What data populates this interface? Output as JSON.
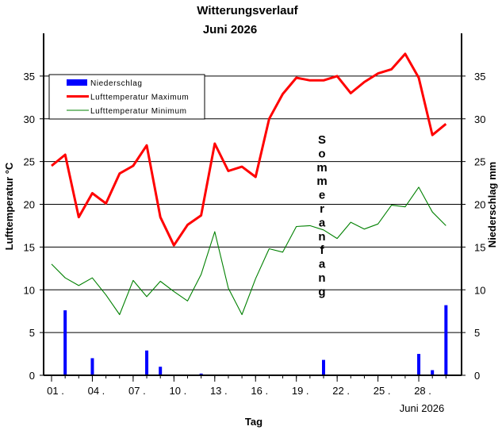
{
  "chart_data": {
    "type": "line",
    "title": "Witterungsverlauf",
    "subtitle": "Juni 2026",
    "xlabel": "Tag",
    "x_period_label": "Juni 2026",
    "ylabel_left": "Lufttemperatur °C",
    "ylabel_right": "Niederschlag  mm",
    "ylim_left": [
      0,
      40
    ],
    "ylim_right": [
      0,
      40
    ],
    "y_ticks": [
      0,
      5,
      10,
      15,
      20,
      25,
      30,
      35
    ],
    "x_days": [
      1,
      2,
      3,
      4,
      5,
      6,
      7,
      8,
      9,
      10,
      11,
      12,
      13,
      14,
      15,
      16,
      17,
      18,
      19,
      20,
      21,
      22,
      23,
      24,
      25,
      26,
      27,
      28,
      29,
      30
    ],
    "x_tick_days": [
      1,
      4,
      7,
      10,
      13,
      16,
      19,
      22,
      25,
      28
    ],
    "x_tick_labels": [
      "01 .",
      "04 .",
      "07 .",
      "10 .",
      "13 .",
      "16 .",
      "19 .",
      "22 .",
      "25 .",
      "28 ."
    ],
    "grid": "horizontal",
    "legend_position": "top-left",
    "annotation": "Sommeranfang",
    "annotation_day": 21,
    "series": [
      {
        "name": "Niederschlag",
        "kind": "bar",
        "axis": "right",
        "color": "#0000ff",
        "values": [
          0,
          7.6,
          0,
          2.0,
          0,
          0,
          0,
          2.9,
          1.0,
          0,
          0,
          0.2,
          0,
          0,
          0,
          0,
          0,
          0,
          0,
          0,
          1.8,
          0,
          0,
          0,
          0,
          0,
          0,
          2.5,
          0.6,
          8.2
        ]
      },
      {
        "name": "Lufttemperatur Maximum",
        "kind": "line",
        "axis": "left",
        "color": "#ff0000",
        "values": [
          24.5,
          25.8,
          18.5,
          21.3,
          20.1,
          23.6,
          24.5,
          26.9,
          18.5,
          15.2,
          17.6,
          18.7,
          27.1,
          23.9,
          24.4,
          23.2,
          30.0,
          32.9,
          34.8,
          34.5,
          34.5,
          35.0,
          33.0,
          34.3,
          35.3,
          35.8,
          37.6,
          34.8,
          28.1,
          29.4
        ]
      },
      {
        "name": "Lufttemperatur Minimum",
        "kind": "line",
        "axis": "left",
        "color": "#008000",
        "values": [
          13.0,
          11.4,
          10.5,
          11.4,
          9.4,
          7.1,
          11.1,
          9.2,
          11.0,
          9.8,
          8.7,
          11.8,
          16.8,
          10.2,
          7.1,
          11.3,
          14.8,
          14.4,
          17.4,
          17.5,
          17.0,
          16.0,
          17.9,
          17.1,
          17.7,
          19.9,
          19.7,
          22.0,
          19.1,
          17.5
        ]
      }
    ]
  }
}
